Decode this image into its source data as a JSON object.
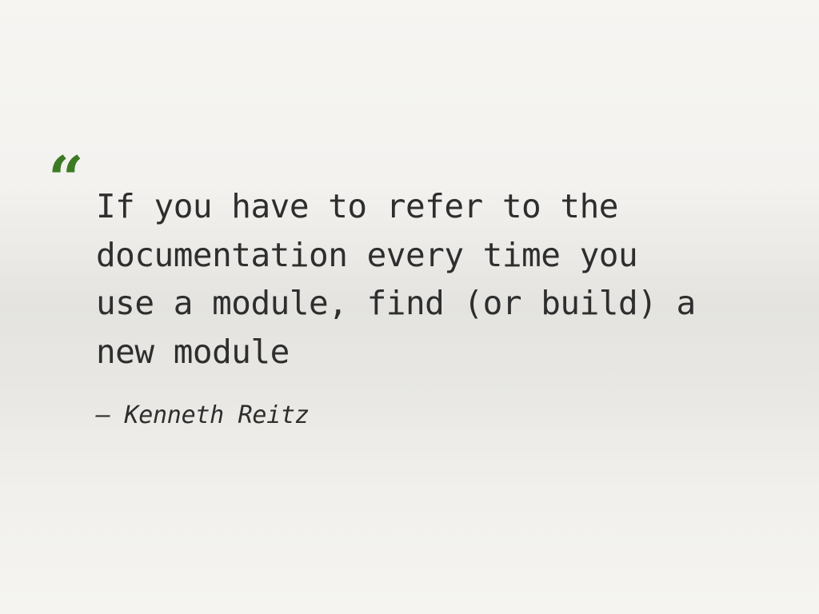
{
  "slide": {
    "quote_mark": "“",
    "quote_lines": [
      "If you have to refer to the",
      "documentation every time you",
      "use a module, find (or build) a",
      "new module"
    ],
    "attribution": "– Kenneth Reitz"
  },
  "colors": {
    "quote_mark": "#3d7a25",
    "text": "#2e2e2e",
    "background": "#f3f2ef"
  }
}
